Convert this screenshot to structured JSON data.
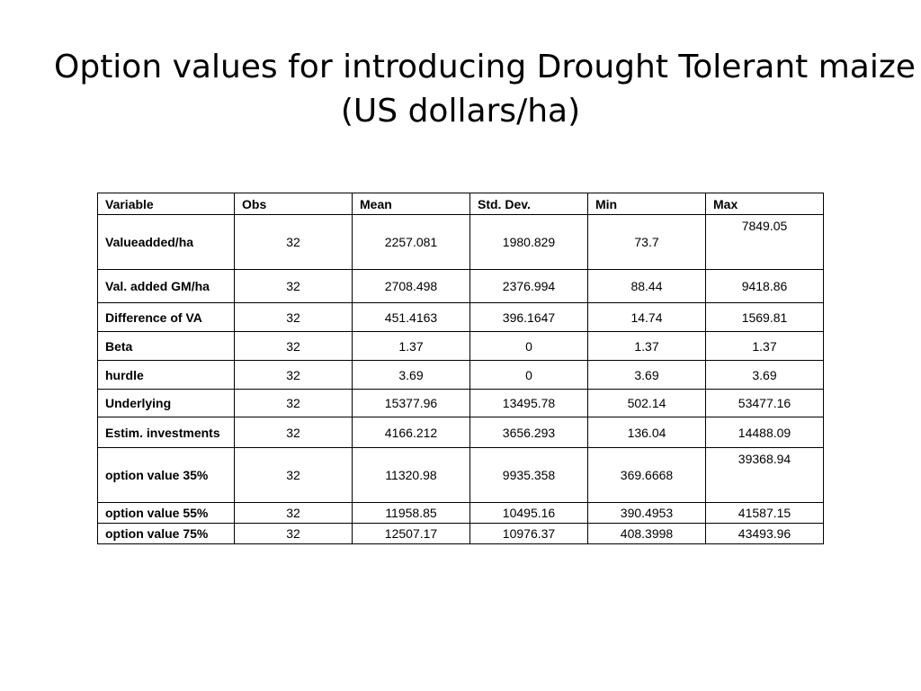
{
  "slide": {
    "title_line1": "Option values for introducing Drought Tolerant maize",
    "title_line2": "(US dollars/ha)"
  },
  "table": {
    "headers": [
      "Variable",
      "Obs",
      "Mean",
      "Std. Dev.",
      "Min",
      "Max"
    ],
    "rows": [
      [
        "Valueadded/ha",
        "32",
        "2257.081",
        "1980.829",
        "73.7",
        "7849.05"
      ],
      [
        "Val. added GM/ha",
        "32",
        "2708.498",
        "2376.994",
        "88.44",
        "9418.86"
      ],
      [
        "Difference of VA",
        "32",
        "451.4163",
        "396.1647",
        "14.74",
        "1569.81"
      ],
      [
        "Beta",
        "32",
        "1.37",
        "0",
        "1.37",
        "1.37"
      ],
      [
        "hurdle",
        "32",
        "3.69",
        "0",
        "3.69",
        "3.69"
      ],
      [
        "Underlying",
        "32",
        "15377.96",
        "13495.78",
        "502.14",
        "53477.16"
      ],
      [
        "Estim. investments",
        "32",
        "4166.212",
        "3656.293",
        "136.04",
        "14488.09"
      ],
      [
        "option value 35%",
        "32",
        "11320.98",
        "9935.358",
        "369.6668",
        "39368.94"
      ],
      [
        "option value 55%",
        "32",
        "11958.85",
        "10495.16",
        "390.4953",
        "41587.15"
      ],
      [
        "option value 75%",
        "32",
        "12507.17",
        "10976.37",
        "408.3998",
        "43493.96"
      ]
    ]
  }
}
